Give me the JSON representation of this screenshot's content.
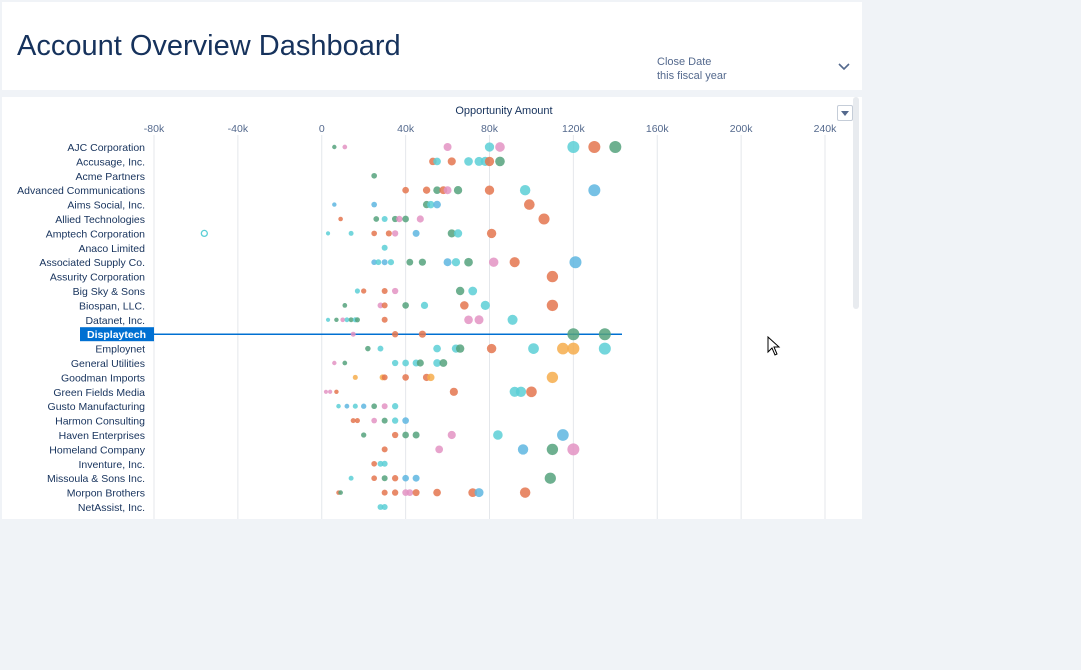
{
  "page": {
    "title": "Account Overview Dashboard"
  },
  "filter": {
    "label": "Close Date",
    "value": "this fiscal year",
    "icon": "chevron-down-icon"
  },
  "chart_menu": {
    "icon": "menu-triangle-icon"
  },
  "colors": {
    "teal": "#5ccfd6",
    "blue": "#5eb6e0",
    "orange": "#e4764f",
    "green": "#55a27d",
    "pink": "#e393c3",
    "yellow": "#f6ad4c",
    "highlight": "#0070d2"
  },
  "chart_data": {
    "type": "scatter",
    "title": "Opportunity Amount",
    "x_ticks": [
      "-80k",
      "-40k",
      "0",
      "40k",
      "80k",
      "120k",
      "160k",
      "200k",
      "240k"
    ],
    "xlim": [
      -80000,
      240000
    ],
    "categories": [
      "AJC Corporation",
      "Accusage, Inc.",
      "Acme Partners",
      "Advanced Communications",
      "Aims Social, Inc.",
      "Allied Technologies",
      "Amptech Corporation",
      "Anaco Limited",
      "Associated Supply Co.",
      "Assurity Corporation",
      "Big Sky & Sons",
      "Biospan, LLC.",
      "Datanet, Inc.",
      "Displaytech",
      "Employnet",
      "General Utilities",
      "Goodman Imports",
      "Green Fields Media",
      "Gusto Manufacturing",
      "Harmon Consulting",
      "Haven Enterprises",
      "Homeland Company",
      "Inventure, Inc.",
      "Missoula & Sons Inc.",
      "Morpon Brothers",
      "NetAssist, Inc."
    ],
    "highlighted_category": "Displaytech",
    "grid": true,
    "points": [
      {
        "cat": 0,
        "x": 6000,
        "c": "green"
      },
      {
        "cat": 0,
        "x": 11000,
        "c": "pink"
      },
      {
        "cat": 0,
        "x": 60000,
        "c": "pink"
      },
      {
        "cat": 0,
        "x": 80000,
        "c": "teal"
      },
      {
        "cat": 0,
        "x": 85000,
        "c": "pink"
      },
      {
        "cat": 0,
        "x": 120000,
        "c": "teal"
      },
      {
        "cat": 0,
        "x": 130000,
        "c": "orange"
      },
      {
        "cat": 0,
        "x": 140000,
        "c": "green"
      },
      {
        "cat": 1,
        "x": 53000,
        "c": "orange"
      },
      {
        "cat": 1,
        "x": 55000,
        "c": "teal"
      },
      {
        "cat": 1,
        "x": 62000,
        "c": "orange"
      },
      {
        "cat": 1,
        "x": 70000,
        "c": "teal"
      },
      {
        "cat": 1,
        "x": 75000,
        "c": "teal"
      },
      {
        "cat": 1,
        "x": 78000,
        "c": "teal"
      },
      {
        "cat": 1,
        "x": 80000,
        "c": "orange"
      },
      {
        "cat": 1,
        "x": 85000,
        "c": "green"
      },
      {
        "cat": 2,
        "x": 25000,
        "c": "green"
      },
      {
        "cat": 3,
        "x": 40000,
        "c": "orange"
      },
      {
        "cat": 3,
        "x": 50000,
        "c": "orange"
      },
      {
        "cat": 3,
        "x": 55000,
        "c": "green"
      },
      {
        "cat": 3,
        "x": 58000,
        "c": "orange"
      },
      {
        "cat": 3,
        "x": 60000,
        "c": "pink"
      },
      {
        "cat": 3,
        "x": 65000,
        "c": "green"
      },
      {
        "cat": 3,
        "x": 80000,
        "c": "orange"
      },
      {
        "cat": 3,
        "x": 97000,
        "c": "teal"
      },
      {
        "cat": 3,
        "x": 130000,
        "c": "blue"
      },
      {
        "cat": 4,
        "x": 6000,
        "c": "blue"
      },
      {
        "cat": 4,
        "x": 25000,
        "c": "blue"
      },
      {
        "cat": 4,
        "x": 50000,
        "c": "green"
      },
      {
        "cat": 4,
        "x": 52000,
        "c": "teal"
      },
      {
        "cat": 4,
        "x": 55000,
        "c": "blue"
      },
      {
        "cat": 4,
        "x": 99000,
        "c": "orange"
      },
      {
        "cat": 5,
        "x": 9000,
        "c": "orange"
      },
      {
        "cat": 5,
        "x": 26000,
        "c": "green"
      },
      {
        "cat": 5,
        "x": 30000,
        "c": "teal"
      },
      {
        "cat": 5,
        "x": 35000,
        "c": "green"
      },
      {
        "cat": 5,
        "x": 37000,
        "c": "pink"
      },
      {
        "cat": 5,
        "x": 40000,
        "c": "green"
      },
      {
        "cat": 5,
        "x": 47000,
        "c": "pink"
      },
      {
        "cat": 5,
        "x": 106000,
        "c": "orange"
      },
      {
        "cat": 6,
        "x": -56000,
        "c": "teal",
        "hollow": true
      },
      {
        "cat": 6,
        "x": 3000,
        "c": "teal"
      },
      {
        "cat": 6,
        "x": 14000,
        "c": "teal"
      },
      {
        "cat": 6,
        "x": 25000,
        "c": "orange"
      },
      {
        "cat": 6,
        "x": 32000,
        "c": "orange"
      },
      {
        "cat": 6,
        "x": 35000,
        "c": "pink"
      },
      {
        "cat": 6,
        "x": 45000,
        "c": "blue"
      },
      {
        "cat": 6,
        "x": 62000,
        "c": "green"
      },
      {
        "cat": 6,
        "x": 65000,
        "c": "teal"
      },
      {
        "cat": 6,
        "x": 81000,
        "c": "orange"
      },
      {
        "cat": 7,
        "x": 30000,
        "c": "teal"
      },
      {
        "cat": 8,
        "x": 25000,
        "c": "blue"
      },
      {
        "cat": 8,
        "x": 27000,
        "c": "teal"
      },
      {
        "cat": 8,
        "x": 30000,
        "c": "blue"
      },
      {
        "cat": 8,
        "x": 33000,
        "c": "teal"
      },
      {
        "cat": 8,
        "x": 42000,
        "c": "green"
      },
      {
        "cat": 8,
        "x": 48000,
        "c": "green"
      },
      {
        "cat": 8,
        "x": 60000,
        "c": "blue"
      },
      {
        "cat": 8,
        "x": 64000,
        "c": "teal"
      },
      {
        "cat": 8,
        "x": 70000,
        "c": "green"
      },
      {
        "cat": 8,
        "x": 82000,
        "c": "pink"
      },
      {
        "cat": 8,
        "x": 92000,
        "c": "orange"
      },
      {
        "cat": 8,
        "x": 121000,
        "c": "blue"
      },
      {
        "cat": 9,
        "x": 110000,
        "c": "orange"
      },
      {
        "cat": 10,
        "x": 17000,
        "c": "teal"
      },
      {
        "cat": 10,
        "x": 20000,
        "c": "orange"
      },
      {
        "cat": 10,
        "x": 30000,
        "c": "orange"
      },
      {
        "cat": 10,
        "x": 35000,
        "c": "pink"
      },
      {
        "cat": 10,
        "x": 66000,
        "c": "green"
      },
      {
        "cat": 10,
        "x": 72000,
        "c": "teal"
      },
      {
        "cat": 11,
        "x": 11000,
        "c": "green"
      },
      {
        "cat": 11,
        "x": 28000,
        "c": "pink"
      },
      {
        "cat": 11,
        "x": 30000,
        "c": "orange"
      },
      {
        "cat": 11,
        "x": 40000,
        "c": "green"
      },
      {
        "cat": 11,
        "x": 49000,
        "c": "teal"
      },
      {
        "cat": 11,
        "x": 68000,
        "c": "orange"
      },
      {
        "cat": 11,
        "x": 78000,
        "c": "teal"
      },
      {
        "cat": 11,
        "x": 110000,
        "c": "orange"
      },
      {
        "cat": 12,
        "x": 3000,
        "c": "teal"
      },
      {
        "cat": 12,
        "x": 7000,
        "c": "green"
      },
      {
        "cat": 12,
        "x": 10000,
        "c": "pink"
      },
      {
        "cat": 12,
        "x": 12000,
        "c": "teal"
      },
      {
        "cat": 12,
        "x": 14000,
        "c": "green"
      },
      {
        "cat": 12,
        "x": 16000,
        "c": "teal"
      },
      {
        "cat": 12,
        "x": 17000,
        "c": "green"
      },
      {
        "cat": 12,
        "x": 30000,
        "c": "orange"
      },
      {
        "cat": 12,
        "x": 70000,
        "c": "pink"
      },
      {
        "cat": 12,
        "x": 75000,
        "c": "pink"
      },
      {
        "cat": 12,
        "x": 91000,
        "c": "teal"
      },
      {
        "cat": 13,
        "x": 15000,
        "c": "pink"
      },
      {
        "cat": 13,
        "x": 35000,
        "c": "orange"
      },
      {
        "cat": 13,
        "x": 48000,
        "c": "orange"
      },
      {
        "cat": 13,
        "x": 120000,
        "c": "green"
      },
      {
        "cat": 13,
        "x": 135000,
        "c": "green"
      },
      {
        "cat": 14,
        "x": 22000,
        "c": "green"
      },
      {
        "cat": 14,
        "x": 28000,
        "c": "teal"
      },
      {
        "cat": 14,
        "x": 55000,
        "c": "teal"
      },
      {
        "cat": 14,
        "x": 64000,
        "c": "teal"
      },
      {
        "cat": 14,
        "x": 66000,
        "c": "green"
      },
      {
        "cat": 14,
        "x": 81000,
        "c": "orange"
      },
      {
        "cat": 14,
        "x": 101000,
        "c": "teal"
      },
      {
        "cat": 14,
        "x": 115000,
        "c": "yellow"
      },
      {
        "cat": 14,
        "x": 120000,
        "c": "yellow"
      },
      {
        "cat": 14,
        "x": 135000,
        "c": "teal"
      },
      {
        "cat": 15,
        "x": 6000,
        "c": "pink"
      },
      {
        "cat": 15,
        "x": 11000,
        "c": "green"
      },
      {
        "cat": 15,
        "x": 35000,
        "c": "teal"
      },
      {
        "cat": 15,
        "x": 40000,
        "c": "teal"
      },
      {
        "cat": 15,
        "x": 45000,
        "c": "teal"
      },
      {
        "cat": 15,
        "x": 47000,
        "c": "green"
      },
      {
        "cat": 15,
        "x": 55000,
        "c": "teal"
      },
      {
        "cat": 15,
        "x": 58000,
        "c": "green"
      },
      {
        "cat": 16,
        "x": 16000,
        "c": "yellow"
      },
      {
        "cat": 16,
        "x": 29000,
        "c": "yellow"
      },
      {
        "cat": 16,
        "x": 30000,
        "c": "orange"
      },
      {
        "cat": 16,
        "x": 40000,
        "c": "orange"
      },
      {
        "cat": 16,
        "x": 50000,
        "c": "orange"
      },
      {
        "cat": 16,
        "x": 52000,
        "c": "yellow"
      },
      {
        "cat": 16,
        "x": 110000,
        "c": "yellow"
      },
      {
        "cat": 17,
        "x": 2000,
        "c": "pink"
      },
      {
        "cat": 17,
        "x": 4000,
        "c": "pink"
      },
      {
        "cat": 17,
        "x": 7000,
        "c": "orange"
      },
      {
        "cat": 17,
        "x": 63000,
        "c": "orange"
      },
      {
        "cat": 17,
        "x": 92000,
        "c": "teal"
      },
      {
        "cat": 17,
        "x": 95000,
        "c": "teal"
      },
      {
        "cat": 17,
        "x": 100000,
        "c": "orange"
      },
      {
        "cat": 18,
        "x": 8000,
        "c": "teal"
      },
      {
        "cat": 18,
        "x": 12000,
        "c": "blue"
      },
      {
        "cat": 18,
        "x": 16000,
        "c": "teal"
      },
      {
        "cat": 18,
        "x": 20000,
        "c": "blue"
      },
      {
        "cat": 18,
        "x": 25000,
        "c": "green"
      },
      {
        "cat": 18,
        "x": 30000,
        "c": "pink"
      },
      {
        "cat": 18,
        "x": 35000,
        "c": "teal"
      },
      {
        "cat": 19,
        "x": 15000,
        "c": "orange"
      },
      {
        "cat": 19,
        "x": 17000,
        "c": "orange"
      },
      {
        "cat": 19,
        "x": 25000,
        "c": "pink"
      },
      {
        "cat": 19,
        "x": 30000,
        "c": "green"
      },
      {
        "cat": 19,
        "x": 35000,
        "c": "teal"
      },
      {
        "cat": 19,
        "x": 40000,
        "c": "blue"
      },
      {
        "cat": 20,
        "x": 20000,
        "c": "green"
      },
      {
        "cat": 20,
        "x": 35000,
        "c": "orange"
      },
      {
        "cat": 20,
        "x": 40000,
        "c": "green"
      },
      {
        "cat": 20,
        "x": 45000,
        "c": "green"
      },
      {
        "cat": 20,
        "x": 62000,
        "c": "pink"
      },
      {
        "cat": 20,
        "x": 84000,
        "c": "teal"
      },
      {
        "cat": 20,
        "x": 115000,
        "c": "blue"
      },
      {
        "cat": 21,
        "x": 30000,
        "c": "orange"
      },
      {
        "cat": 21,
        "x": 56000,
        "c": "pink"
      },
      {
        "cat": 21,
        "x": 96000,
        "c": "blue"
      },
      {
        "cat": 21,
        "x": 110000,
        "c": "green"
      },
      {
        "cat": 21,
        "x": 120000,
        "c": "pink"
      },
      {
        "cat": 22,
        "x": 25000,
        "c": "orange"
      },
      {
        "cat": 22,
        "x": 28000,
        "c": "teal"
      },
      {
        "cat": 22,
        "x": 30000,
        "c": "teal"
      },
      {
        "cat": 23,
        "x": 14000,
        "c": "teal"
      },
      {
        "cat": 23,
        "x": 25000,
        "c": "orange"
      },
      {
        "cat": 23,
        "x": 30000,
        "c": "green"
      },
      {
        "cat": 23,
        "x": 35000,
        "c": "orange"
      },
      {
        "cat": 23,
        "x": 40000,
        "c": "blue"
      },
      {
        "cat": 23,
        "x": 45000,
        "c": "blue"
      },
      {
        "cat": 23,
        "x": 109000,
        "c": "green"
      },
      {
        "cat": 24,
        "x": 8000,
        "c": "orange"
      },
      {
        "cat": 24,
        "x": 9000,
        "c": "green"
      },
      {
        "cat": 24,
        "x": 30000,
        "c": "orange"
      },
      {
        "cat": 24,
        "x": 35000,
        "c": "orange"
      },
      {
        "cat": 24,
        "x": 40000,
        "c": "pink"
      },
      {
        "cat": 24,
        "x": 42000,
        "c": "pink"
      },
      {
        "cat": 24,
        "x": 45000,
        "c": "orange"
      },
      {
        "cat": 24,
        "x": 55000,
        "c": "orange"
      },
      {
        "cat": 24,
        "x": 72000,
        "c": "orange"
      },
      {
        "cat": 24,
        "x": 75000,
        "c": "blue"
      },
      {
        "cat": 24,
        "x": 97000,
        "c": "orange"
      },
      {
        "cat": 25,
        "x": 28000,
        "c": "teal"
      },
      {
        "cat": 25,
        "x": 30000,
        "c": "teal"
      }
    ]
  }
}
